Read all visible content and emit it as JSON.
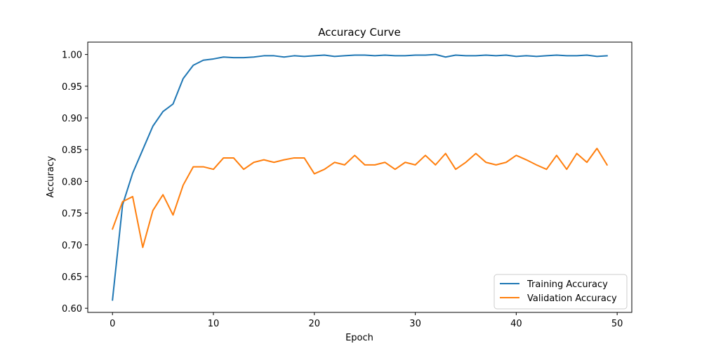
{
  "chart_data": {
    "type": "line",
    "title": "Accuracy Curve",
    "xlabel": "Epoch",
    "ylabel": "Accuracy",
    "xlim": [
      -2.45,
      51.45
    ],
    "ylim": [
      0.5935,
      1.0195
    ],
    "xticks": [
      0,
      10,
      20,
      30,
      40,
      50
    ],
    "yticks": [
      0.6,
      0.65,
      0.7,
      0.75,
      0.8,
      0.85,
      0.9,
      0.95,
      1.0
    ],
    "ytick_labels": [
      "0.60",
      "0.65",
      "0.70",
      "0.75",
      "0.80",
      "0.85",
      "0.90",
      "0.95",
      "1.00"
    ],
    "xtick_labels": [
      "0",
      "10",
      "20",
      "30",
      "40",
      "50"
    ],
    "grid": false,
    "legend_position": "lower right",
    "x": [
      0,
      1,
      2,
      3,
      4,
      5,
      6,
      7,
      8,
      9,
      10,
      11,
      12,
      13,
      14,
      15,
      16,
      17,
      18,
      19,
      20,
      21,
      22,
      23,
      24,
      25,
      26,
      27,
      28,
      29,
      30,
      31,
      32,
      33,
      34,
      35,
      36,
      37,
      38,
      39,
      40,
      41,
      42,
      43,
      44,
      45,
      46,
      47,
      48,
      49
    ],
    "series": [
      {
        "name": "Training Accuracy",
        "color": "#1f77b4",
        "values": [
          0.613,
          0.763,
          0.813,
          0.85,
          0.887,
          0.91,
          0.922,
          0.962,
          0.983,
          0.991,
          0.993,
          0.996,
          0.995,
          0.995,
          0.996,
          0.998,
          0.998,
          0.996,
          0.998,
          0.997,
          0.998,
          0.999,
          0.997,
          0.998,
          0.999,
          0.999,
          0.998,
          0.999,
          0.998,
          0.998,
          0.999,
          0.999,
          1.0,
          0.996,
          0.999,
          0.998,
          0.998,
          0.999,
          0.998,
          0.999,
          0.997,
          0.998,
          0.997,
          0.998,
          0.999,
          0.998,
          0.998,
          0.999,
          0.997,
          0.998
        ]
      },
      {
        "name": "Validation Accuracy",
        "color": "#ff7f0e",
        "values": [
          0.725,
          0.768,
          0.776,
          0.696,
          0.754,
          0.779,
          0.747,
          0.794,
          0.823,
          0.823,
          0.819,
          0.837,
          0.837,
          0.819,
          0.83,
          0.834,
          0.83,
          0.834,
          0.837,
          0.837,
          0.812,
          0.819,
          0.83,
          0.826,
          0.841,
          0.826,
          0.826,
          0.83,
          0.819,
          0.83,
          0.826,
          0.841,
          0.826,
          0.844,
          0.819,
          0.83,
          0.844,
          0.83,
          0.826,
          0.83,
          0.841,
          0.834,
          0.826,
          0.819,
          0.841,
          0.819,
          0.844,
          0.83,
          0.852,
          0.826
        ]
      }
    ]
  }
}
